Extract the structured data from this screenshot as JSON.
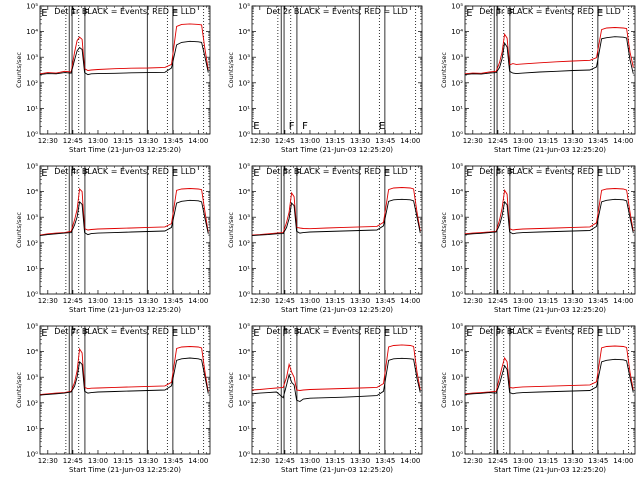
{
  "chart_data": {
    "type": "line",
    "layout": "3x3 grid",
    "shared": {
      "xlabel": "Start Time (21-Jun-03 12:25:20)",
      "ylabel": "Counts/sec",
      "x_tick_labels": [
        "12:30",
        "12:45",
        "13:00",
        "13:15",
        "13:30",
        "13:45",
        "14:00"
      ],
      "x_tick_minutes": [
        30,
        45,
        60,
        75,
        90,
        105,
        120
      ],
      "xlim_minutes": [
        25.33,
        127
      ],
      "y_scale": "log",
      "ylim_exponent": [
        0,
        5
      ],
      "y_tick_labels": [
        "10⁰",
        "10¹",
        "10²",
        "10³",
        "10⁴",
        "10⁵"
      ],
      "series_names": [
        "Events (black)",
        "LLD (red)"
      ],
      "series_colors": {
        "events": "#000000",
        "lld": "#e00000"
      },
      "solid_markers_minutes": [
        42.8,
        44.5,
        52.2,
        89.5,
        104.8
      ],
      "dotted_markers_minutes": [
        40.8,
        48.5,
        101.5,
        123.2
      ],
      "flags": [
        {
          "text": "E",
          "minute": 28
        },
        {
          "text": "F",
          "minute": 45.2
        },
        {
          "text": "F",
          "minute": 53
        },
        {
          "text": "E",
          "minute": 106
        }
      ],
      "flags_low": [
        {
          "text": "E",
          "minute": 28
        },
        {
          "text": "F",
          "minute": 49
        },
        {
          "text": "F",
          "minute": 57
        },
        {
          "text": "E",
          "minute": 103
        }
      ]
    },
    "panels": [
      {
        "title": "Det 1r BLACK = Events, RED = LLD",
        "series": [
          {
            "name": "LLD",
            "x": [
              25.3,
              30,
              35,
              40,
              44,
              46,
              47.5,
              49,
              50.5,
              52,
              54,
              56,
              60,
              70,
              80,
              90,
              100,
              104,
              107,
              110,
              115,
              120,
              122,
              124,
              126
            ],
            "y": [
              2.35,
              2.4,
              2.38,
              2.45,
              2.42,
              3.2,
              3.65,
              3.78,
              3.7,
              2.55,
              2.48,
              2.5,
              2.52,
              2.55,
              2.57,
              2.58,
              2.6,
              2.72,
              4.2,
              4.28,
              4.3,
              4.28,
              4.26,
              3.3,
              2.5
            ]
          },
          {
            "name": "Events",
            "x": [
              25.3,
              30,
              35,
              40,
              44,
              46,
              47.5,
              49,
              50.5,
              52,
              54,
              56,
              60,
              70,
              80,
              90,
              100,
              104,
              107,
              110,
              115,
              120,
              122,
              124,
              126
            ],
            "y": [
              2.32,
              2.36,
              2.35,
              2.4,
              2.38,
              2.9,
              3.25,
              3.38,
              3.3,
              2.4,
              2.32,
              2.35,
              2.36,
              2.37,
              2.39,
              2.4,
              2.41,
              2.58,
              3.48,
              3.58,
              3.62,
              3.6,
              3.58,
              3.0,
              2.4
            ]
          }
        ]
      },
      {
        "title": "Det 2r BLACK = Events, RED = LLD",
        "series": [],
        "flags_low": true
      },
      {
        "title": "Det 3r BLACK = Events, RED = LLD",
        "series": [
          {
            "name": "LLD",
            "x": [
              25.3,
              30,
              35,
              40,
              44,
              46,
              47.5,
              49,
              50.5,
              52,
              54,
              56,
              60,
              70,
              80,
              90,
              100,
              104,
              107,
              110,
              115,
              120,
              122,
              124,
              126
            ],
            "y": [
              2.35,
              2.38,
              2.37,
              2.42,
              2.45,
              2.8,
              3.2,
              3.9,
              3.75,
              2.7,
              2.75,
              2.72,
              2.74,
              2.78,
              2.82,
              2.85,
              2.88,
              2.98,
              4.08,
              4.14,
              4.16,
              4.14,
              4.12,
              3.2,
              2.6
            ]
          },
          {
            "name": "Events",
            "x": [
              25.3,
              30,
              35,
              40,
              44,
              46,
              47.5,
              49,
              50.5,
              52,
              54,
              56,
              60,
              70,
              80,
              90,
              100,
              104,
              107,
              110,
              115,
              120,
              122,
              124,
              126
            ],
            "y": [
              2.32,
              2.35,
              2.34,
              2.38,
              2.4,
              2.6,
              2.95,
              3.55,
              3.4,
              2.45,
              2.38,
              2.36,
              2.38,
              2.42,
              2.45,
              2.48,
              2.5,
              2.62,
              3.72,
              3.76,
              3.8,
              3.78,
              3.75,
              2.9,
              2.35
            ]
          }
        ]
      },
      {
        "title": "Det 4r BLACK = Events, RED = LLD",
        "series": [
          {
            "name": "LLD",
            "x": [
              25.3,
              30,
              35,
              40,
              44,
              46,
              47.5,
              49,
              50.5,
              52,
              54,
              56,
              60,
              70,
              80,
              90,
              100,
              104,
              107,
              110,
              115,
              120,
              122,
              124,
              126
            ],
            "y": [
              2.3,
              2.35,
              2.38,
              2.4,
              2.45,
              2.9,
              3.3,
              4.1,
              4.0,
              2.55,
              2.5,
              2.52,
              2.54,
              2.56,
              2.58,
              2.6,
              2.62,
              2.75,
              4.05,
              4.1,
              4.12,
              4.1,
              4.08,
              3.2,
              2.4
            ]
          },
          {
            "name": "Events",
            "x": [
              25.3,
              30,
              35,
              40,
              44,
              46,
              47.5,
              49,
              50.5,
              52,
              54,
              56,
              60,
              70,
              80,
              90,
              100,
              104,
              107,
              110,
              115,
              120,
              122,
              124,
              126
            ],
            "y": [
              2.28,
              2.32,
              2.35,
              2.38,
              2.4,
              2.7,
              3.0,
              3.6,
              3.5,
              2.4,
              2.32,
              2.36,
              2.38,
              2.4,
              2.42,
              2.44,
              2.46,
              2.6,
              3.55,
              3.62,
              3.66,
              3.64,
              3.6,
              2.95,
              2.35
            ]
          }
        ]
      },
      {
        "title": "Det 5r BLACK = Events, RED = LLD",
        "series": [
          {
            "name": "LLD",
            "x": [
              25.3,
              30,
              35,
              40,
              44,
              46,
              47.5,
              49,
              50.5,
              52,
              54,
              56,
              60,
              70,
              80,
              90,
              100,
              104,
              107,
              110,
              115,
              120,
              122,
              124,
              126
            ],
            "y": [
              2.3,
              2.32,
              2.35,
              2.38,
              2.4,
              2.8,
              3.2,
              3.95,
              3.8,
              2.6,
              2.58,
              2.56,
              2.55,
              2.58,
              2.6,
              2.62,
              2.64,
              2.8,
              4.08,
              4.14,
              4.16,
              4.14,
              4.1,
              3.2,
              2.45
            ]
          },
          {
            "name": "Events",
            "x": [
              25.3,
              30,
              35,
              40,
              44,
              46,
              47.5,
              49,
              50.5,
              52,
              54,
              56,
              60,
              70,
              80,
              90,
              100,
              104,
              107,
              110,
              115,
              120,
              122,
              124,
              126
            ],
            "y": [
              2.28,
              2.3,
              2.32,
              2.35,
              2.36,
              2.6,
              2.95,
              3.55,
              3.45,
              2.45,
              2.38,
              2.4,
              2.42,
              2.44,
              2.46,
              2.48,
              2.5,
              2.66,
              3.62,
              3.68,
              3.7,
              3.68,
              3.64,
              3.0,
              2.38
            ]
          }
        ]
      },
      {
        "title": "Det 6r BLACK = Events, RED = LLD",
        "series": [
          {
            "name": "LLD",
            "x": [
              25.3,
              30,
              35,
              40,
              44,
              46,
              47.5,
              49,
              50.5,
              52,
              54,
              56,
              60,
              70,
              80,
              90,
              100,
              104,
              107,
              110,
              115,
              120,
              122,
              124,
              126
            ],
            "y": [
              2.35,
              2.38,
              2.4,
              2.42,
              2.45,
              2.9,
              3.35,
              4.05,
              3.9,
              2.55,
              2.5,
              2.52,
              2.54,
              2.56,
              2.58,
              2.6,
              2.62,
              2.78,
              4.05,
              4.1,
              4.12,
              4.1,
              4.06,
              3.2,
              2.45
            ]
          },
          {
            "name": "Events",
            "x": [
              25.3,
              30,
              35,
              40,
              44,
              46,
              47.5,
              49,
              50.5,
              52,
              54,
              56,
              60,
              70,
              80,
              90,
              100,
              104,
              107,
              110,
              115,
              120,
              122,
              124,
              126
            ],
            "y": [
              2.32,
              2.35,
              2.37,
              2.4,
              2.42,
              2.7,
              3.05,
              3.6,
              3.48,
              2.42,
              2.35,
              2.38,
              2.4,
              2.42,
              2.44,
              2.46,
              2.48,
              2.64,
              3.6,
              3.66,
              3.7,
              3.68,
              3.64,
              2.98,
              2.38
            ]
          }
        ]
      },
      {
        "title": "Det 7r BLACK = Events, RED = LLD",
        "series": [
          {
            "name": "LLD",
            "x": [
              25.3,
              30,
              35,
              40,
              44,
              46,
              47.5,
              49,
              50.5,
              52,
              54,
              56,
              60,
              70,
              80,
              90,
              100,
              104,
              107,
              110,
              115,
              120,
              122,
              124,
              126
            ],
            "y": [
              2.32,
              2.35,
              2.38,
              2.4,
              2.45,
              2.8,
              3.25,
              4.1,
              3.95,
              2.6,
              2.55,
              2.57,
              2.58,
              2.6,
              2.62,
              2.64,
              2.66,
              2.8,
              4.12,
              4.18,
              4.2,
              4.18,
              4.14,
              3.2,
              2.42
            ]
          },
          {
            "name": "Events",
            "x": [
              25.3,
              30,
              35,
              40,
              44,
              46,
              47.5,
              49,
              50.5,
              52,
              54,
              56,
              60,
              70,
              80,
              90,
              100,
              104,
              107,
              110,
              115,
              120,
              122,
              124,
              126
            ],
            "y": [
              2.3,
              2.33,
              2.35,
              2.38,
              2.42,
              2.65,
              3.0,
              3.6,
              3.5,
              2.45,
              2.38,
              2.4,
              2.42,
              2.44,
              2.46,
              2.48,
              2.5,
              2.66,
              3.66,
              3.72,
              3.75,
              3.72,
              3.68,
              3.0,
              2.36
            ]
          }
        ]
      },
      {
        "title": "Det 8r BLACK = Events, RED = LLD",
        "series": [
          {
            "name": "LLD",
            "x": [
              25.3,
              30,
              35,
              40,
              44,
              46,
              47.5,
              49,
              50.5,
              52,
              54,
              56,
              60,
              70,
              80,
              90,
              100,
              104,
              107,
              110,
              115,
              120,
              122,
              124,
              126
            ],
            "y": [
              2.5,
              2.52,
              2.55,
              2.58,
              2.6,
              3.0,
              3.5,
              3.2,
              3.0,
              2.5,
              2.48,
              2.5,
              2.52,
              2.54,
              2.56,
              2.58,
              2.6,
              2.75,
              4.18,
              4.24,
              4.26,
              4.24,
              4.2,
              3.2,
              2.5
            ]
          },
          {
            "name": "Events",
            "x": [
              25.3,
              30,
              35,
              40,
              44,
              46,
              47.5,
              49,
              50.5,
              52,
              54,
              56,
              60,
              70,
              80,
              90,
              100,
              104,
              107,
              110,
              115,
              120,
              122,
              124,
              126
            ],
            "y": [
              2.35,
              2.38,
              2.4,
              2.42,
              2.2,
              2.7,
              3.1,
              2.8,
              2.7,
              2.1,
              2.05,
              2.15,
              2.18,
              2.2,
              2.22,
              2.25,
              2.28,
              2.45,
              3.66,
              3.72,
              3.74,
              3.72,
              3.7,
              2.95,
              2.4
            ]
          }
        ]
      },
      {
        "title": "Det 9r BLACK = Events, RED = LLD",
        "series": [
          {
            "name": "LLD",
            "x": [
              25.3,
              30,
              35,
              40,
              44,
              46,
              47.5,
              49,
              50.5,
              52,
              54,
              56,
              60,
              70,
              80,
              90,
              100,
              104,
              107,
              110,
              115,
              120,
              122,
              124,
              126
            ],
            "y": [
              2.35,
              2.38,
              2.4,
              2.42,
              2.45,
              3.0,
              3.4,
              3.75,
              3.6,
              2.6,
              2.58,
              2.6,
              2.62,
              2.64,
              2.66,
              2.68,
              2.7,
              2.82,
              4.15,
              4.2,
              4.22,
              4.2,
              4.16,
              3.2,
              2.5
            ]
          },
          {
            "name": "Events",
            "x": [
              25.3,
              30,
              35,
              40,
              44,
              46,
              47.5,
              49,
              50.5,
              52,
              54,
              56,
              60,
              70,
              80,
              90,
              100,
              104,
              107,
              110,
              115,
              120,
              122,
              124,
              126
            ],
            "y": [
              2.32,
              2.35,
              2.37,
              2.4,
              2.38,
              2.75,
              3.1,
              3.45,
              3.3,
              2.4,
              2.35,
              2.38,
              2.4,
              2.42,
              2.44,
              2.46,
              2.48,
              2.62,
              3.6,
              3.66,
              3.7,
              3.68,
              3.64,
              2.98,
              2.4
            ]
          }
        ]
      }
    ]
  }
}
